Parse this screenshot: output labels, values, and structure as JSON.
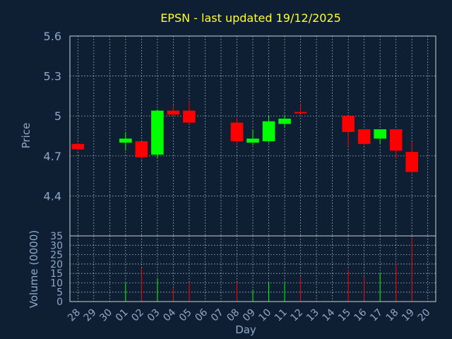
{
  "header": {
    "title": "EPSN - last updated 19/12/2025"
  },
  "colors": {
    "background": "#0f1f33",
    "title": "#ffff33",
    "axis_text": "#8fa8c8",
    "up": "#00ff00",
    "down": "#ff0000"
  },
  "chart_data": [
    {
      "type": "candlestick",
      "title": "EPSN - last updated 19/12/2025",
      "ylabel": "Price",
      "ylim": [
        4.1,
        5.6
      ],
      "yticks": [
        "5.6",
        "5.3",
        "5",
        "4.7",
        "4.4"
      ],
      "ytick_values": [
        5.6,
        5.3,
        5.0,
        4.7,
        4.4
      ],
      "grid": true,
      "categories": [
        "28",
        "29",
        "30",
        "01",
        "02",
        "03",
        "04",
        "05",
        "06",
        "07",
        "08",
        "09",
        "10",
        "11",
        "12",
        "13",
        "14",
        "15",
        "16",
        "17",
        "18",
        "19",
        "20"
      ],
      "candles": [
        {
          "day": "28",
          "open": 4.79,
          "close": 4.75,
          "high": 4.8,
          "low": 4.74
        },
        {
          "day": "01",
          "open": 4.8,
          "close": 4.83,
          "high": 4.88,
          "low": 4.74
        },
        {
          "day": "02",
          "open": 4.81,
          "close": 4.69,
          "high": 4.81,
          "low": 4.67
        },
        {
          "day": "03",
          "open": 4.71,
          "close": 5.04,
          "high": 5.05,
          "low": 4.68
        },
        {
          "day": "04",
          "open": 5.04,
          "close": 5.01,
          "high": 5.08,
          "low": 5.0
        },
        {
          "day": "05",
          "open": 5.04,
          "close": 4.95,
          "high": 5.11,
          "low": 4.94
        },
        {
          "day": "08",
          "open": 4.95,
          "close": 4.81,
          "high": 4.99,
          "low": 4.78
        },
        {
          "day": "09",
          "open": 4.8,
          "close": 4.83,
          "high": 4.9,
          "low": 4.78
        },
        {
          "day": "10",
          "open": 4.81,
          "close": 4.96,
          "high": 5.0,
          "low": 4.8
        },
        {
          "day": "11",
          "open": 4.94,
          "close": 4.98,
          "high": 5.01,
          "low": 4.91
        },
        {
          "day": "12",
          "open": 5.03,
          "close": 5.02,
          "high": 5.09,
          "low": 5.0
        },
        {
          "day": "15",
          "open": 5.0,
          "close": 4.88,
          "high": 5.0,
          "low": 4.77
        },
        {
          "day": "16",
          "open": 4.9,
          "close": 4.79,
          "high": 4.9,
          "low": 4.78
        },
        {
          "day": "17",
          "open": 4.83,
          "close": 4.9,
          "high": 4.9,
          "low": 4.79
        },
        {
          "day": "18",
          "open": 4.9,
          "close": 4.74,
          "high": 4.9,
          "low": 4.68
        },
        {
          "day": "19",
          "open": 4.73,
          "close": 4.58,
          "high": 4.81,
          "low": 4.57
        }
      ]
    },
    {
      "type": "bar",
      "ylabel": "Volume (0000)",
      "xlabel": "Day",
      "ylim": [
        0,
        35
      ],
      "yticks": [
        "35",
        "30",
        "25",
        "20",
        "15",
        "10",
        "5",
        "0"
      ],
      "ytick_values": [
        35,
        30,
        25,
        20,
        15,
        10,
        5,
        0
      ],
      "grid": true,
      "categories": [
        "28",
        "29",
        "30",
        "01",
        "02",
        "03",
        "04",
        "05",
        "06",
        "07",
        "08",
        "09",
        "10",
        "11",
        "12",
        "13",
        "14",
        "15",
        "16",
        "17",
        "18",
        "19",
        "20"
      ],
      "bars": [
        {
          "day": "28",
          "value": 0,
          "direction": "down"
        },
        {
          "day": "01",
          "value": 10,
          "direction": "up"
        },
        {
          "day": "02",
          "value": 18,
          "direction": "down"
        },
        {
          "day": "03",
          "value": 12.5,
          "direction": "up"
        },
        {
          "day": "04",
          "value": 7,
          "direction": "down"
        },
        {
          "day": "05",
          "value": 10,
          "direction": "down"
        },
        {
          "day": "08",
          "value": 10,
          "direction": "down"
        },
        {
          "day": "09",
          "value": 6.5,
          "direction": "up"
        },
        {
          "day": "10",
          "value": 10,
          "direction": "up"
        },
        {
          "day": "11",
          "value": 10,
          "direction": "up"
        },
        {
          "day": "12",
          "value": 13,
          "direction": "down"
        },
        {
          "day": "15",
          "value": 17,
          "direction": "down"
        },
        {
          "day": "16",
          "value": 13,
          "direction": "down"
        },
        {
          "day": "17",
          "value": 15,
          "direction": "up"
        },
        {
          "day": "18",
          "value": 20,
          "direction": "down"
        },
        {
          "day": "19",
          "value": 34,
          "direction": "down"
        }
      ]
    }
  ]
}
